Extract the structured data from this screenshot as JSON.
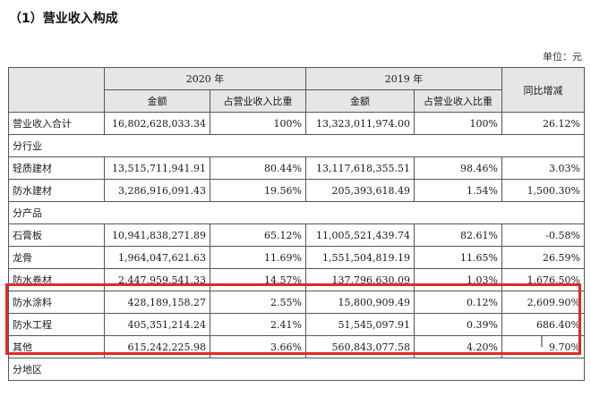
{
  "heading": "（1）营业收入构成",
  "unit": "单位：元",
  "columns": {
    "year_2020": "2020 年",
    "year_2019": "2019 年",
    "yoy": "同比增减",
    "amount_2020": "金额",
    "share_2020": "占营业收入比重",
    "amount_2019": "金额",
    "share_2019": "占营业收入比重"
  },
  "total": {
    "label": "营业收入合计",
    "amount_2020": "16,802,628,033.34",
    "share_2020": "100%",
    "amount_2019": "13,323,011,974.00",
    "share_2019": "100%",
    "yoy": "26.12%"
  },
  "sections": {
    "by_industry": "分行业",
    "by_product": "分产品",
    "by_region": "分地区"
  },
  "industry_rows": [
    {
      "label": "轻质建材",
      "amount_2020": "13,515,711,941.91",
      "share_2020": "80.44%",
      "amount_2019": "13,117,618,355.51",
      "share_2019": "98.46%",
      "yoy": "3.03%"
    },
    {
      "label": "防水建材",
      "amount_2020": "3,286,916,091.43",
      "share_2020": "19.56%",
      "amount_2019": "205,393,618.49",
      "share_2019": "1.54%",
      "yoy": "1,500.30%"
    }
  ],
  "product_rows": [
    {
      "label": "石膏板",
      "amount_2020": "10,941,838,271.89",
      "share_2020": "65.12%",
      "amount_2019": "11,005,521,439.74",
      "share_2019": "82.61%",
      "yoy": "-0.58%"
    },
    {
      "label": "龙骨",
      "amount_2020": "1,964,047,621.63",
      "share_2020": "11.69%",
      "amount_2019": "1,551,504,819.19",
      "share_2019": "11.65%",
      "yoy": "26.59%"
    },
    {
      "label": "防水卷材",
      "amount_2020": "2,447,959,541.33",
      "share_2020": "14.57%",
      "amount_2019": "137,796,630.09",
      "share_2019": "1.03%",
      "yoy": "1,676.50%"
    },
    {
      "label": "防水涂料",
      "amount_2020": "428,189,158.27",
      "share_2020": "2.55%",
      "amount_2019": "15,800,909.49",
      "share_2019": "0.12%",
      "yoy": "2,609.90%"
    },
    {
      "label": "防水工程",
      "amount_2020": "405,351,214.24",
      "share_2020": "2.41%",
      "amount_2019": "51,545,097.91",
      "share_2019": "0.39%",
      "yoy": "686.40%"
    },
    {
      "label": "其他",
      "amount_2020": "615,242,225.98",
      "share_2020": "3.66%",
      "amount_2019": "560,843,077.58",
      "share_2019": "4.20%",
      "yoy": "9.70%"
    }
  ],
  "highlight_color": "#e0282a",
  "header_bg": "#e6e6e6"
}
